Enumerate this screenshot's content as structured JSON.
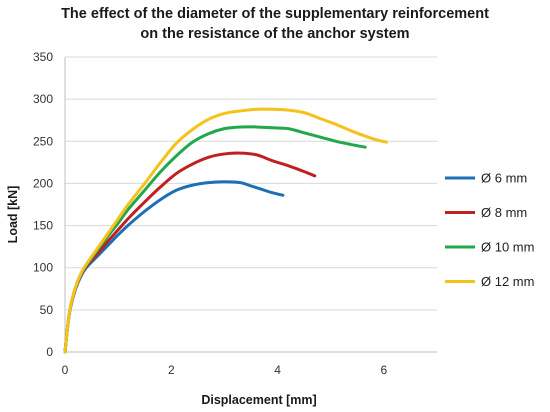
{
  "chart_data": {
    "type": "line",
    "title_line1": "The effect of the diameter of the supplementary reinforcement",
    "title_line2": "on the resistance of the anchor system",
    "xlabel": "Displacement [mm]",
    "ylabel": "Load [kN]",
    "xlim": [
      0,
      7
    ],
    "ylim": [
      0,
      350
    ],
    "x_ticks": [
      0,
      2,
      4,
      6
    ],
    "y_ticks": [
      0,
      50,
      100,
      150,
      200,
      250,
      300,
      350
    ],
    "grid": "horizontal",
    "legend_position": "right",
    "series": [
      {
        "name": "Ø 6 mm",
        "color": "#1f6fb4",
        "points": [
          [
            0,
            0
          ],
          [
            0.05,
            30
          ],
          [
            0.1,
            52
          ],
          [
            0.2,
            75
          ],
          [
            0.3,
            90
          ],
          [
            0.4,
            100
          ],
          [
            0.6,
            113
          ],
          [
            0.8,
            126
          ],
          [
            1.0,
            139
          ],
          [
            1.2,
            151
          ],
          [
            1.5,
            167
          ],
          [
            1.8,
            181
          ],
          [
            2.1,
            192
          ],
          [
            2.4,
            198
          ],
          [
            2.7,
            201
          ],
          [
            3.0,
            202
          ],
          [
            3.3,
            201
          ],
          [
            3.5,
            197
          ],
          [
            3.7,
            193
          ],
          [
            3.9,
            189
          ],
          [
            4.1,
            186
          ]
        ]
      },
      {
        "name": "Ø 8 mm",
        "color": "#c0201f",
        "points": [
          [
            0,
            0
          ],
          [
            0.05,
            30
          ],
          [
            0.1,
            52
          ],
          [
            0.2,
            76
          ],
          [
            0.3,
            92
          ],
          [
            0.4,
            102
          ],
          [
            0.6,
            116
          ],
          [
            0.8,
            131
          ],
          [
            1.0,
            145
          ],
          [
            1.2,
            159
          ],
          [
            1.5,
            178
          ],
          [
            1.8,
            196
          ],
          [
            2.1,
            212
          ],
          [
            2.4,
            223
          ],
          [
            2.7,
            231
          ],
          [
            3.0,
            235
          ],
          [
            3.3,
            236
          ],
          [
            3.6,
            234
          ],
          [
            3.9,
            227
          ],
          [
            4.2,
            221
          ],
          [
            4.5,
            214
          ],
          [
            4.7,
            209
          ]
        ]
      },
      {
        "name": "Ø 10 mm",
        "color": "#22a84a",
        "points": [
          [
            0,
            0
          ],
          [
            0.05,
            30
          ],
          [
            0.1,
            53
          ],
          [
            0.2,
            77
          ],
          [
            0.3,
            93
          ],
          [
            0.4,
            103
          ],
          [
            0.6,
            120
          ],
          [
            0.8,
            137
          ],
          [
            1.0,
            153
          ],
          [
            1.2,
            170
          ],
          [
            1.5,
            192
          ],
          [
            1.8,
            214
          ],
          [
            2.1,
            233
          ],
          [
            2.4,
            249
          ],
          [
            2.7,
            259
          ],
          [
            3.0,
            265
          ],
          [
            3.3,
            267
          ],
          [
            3.6,
            267
          ],
          [
            3.9,
            266
          ],
          [
            4.2,
            265
          ],
          [
            4.5,
            260
          ],
          [
            4.8,
            255
          ],
          [
            5.1,
            250
          ],
          [
            5.4,
            246
          ],
          [
            5.65,
            243
          ]
        ]
      },
      {
        "name": "Ø 12 mm",
        "color": "#f5c21b",
        "points": [
          [
            0,
            0
          ],
          [
            0.05,
            30
          ],
          [
            0.1,
            53
          ],
          [
            0.2,
            77
          ],
          [
            0.3,
            93
          ],
          [
            0.4,
            104
          ],
          [
            0.6,
            122
          ],
          [
            0.8,
            140
          ],
          [
            1.0,
            158
          ],
          [
            1.2,
            176
          ],
          [
            1.5,
            200
          ],
          [
            1.8,
            225
          ],
          [
            2.1,
            248
          ],
          [
            2.4,
            264
          ],
          [
            2.7,
            276
          ],
          [
            3.0,
            283
          ],
          [
            3.3,
            286
          ],
          [
            3.6,
            288
          ],
          [
            3.9,
            288
          ],
          [
            4.2,
            287
          ],
          [
            4.5,
            284
          ],
          [
            4.8,
            277
          ],
          [
            5.1,
            270
          ],
          [
            5.4,
            262
          ],
          [
            5.7,
            255
          ],
          [
            5.9,
            251
          ],
          [
            6.05,
            249
          ]
        ]
      }
    ]
  }
}
